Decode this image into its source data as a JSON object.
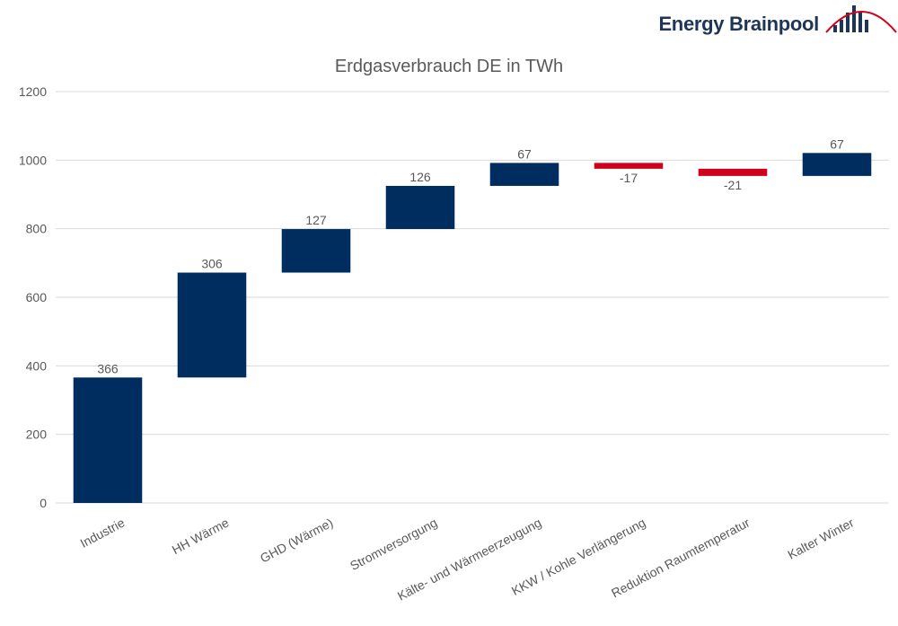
{
  "brand": {
    "name": "Energy Brainpool",
    "text_color": "#1f3558",
    "accent_color": "#d0021b"
  },
  "chart_data": {
    "type": "waterfall",
    "title": "Erdgasverbrauch DE in TWh",
    "xlabel": "",
    "ylabel": "",
    "ylim": [
      0,
      1200
    ],
    "yticks": [
      0,
      200,
      400,
      600,
      800,
      1000,
      1200
    ],
    "grid": true,
    "categories": [
      "Industrie",
      "HH Wärme",
      "GHD (Wärme)",
      "Stromversorgung",
      "Kälte- und Wärmeerzeugung",
      "KKW / Kohle Verlängerung",
      "Reduktion Raumtemperatur",
      "Kalter Winter"
    ],
    "values": [
      366,
      306,
      127,
      126,
      67,
      -17,
      -21,
      67
    ],
    "bars": [
      {
        "start": 0,
        "end": 366
      },
      {
        "start": 366,
        "end": 672
      },
      {
        "start": 672,
        "end": 799
      },
      {
        "start": 799,
        "end": 925
      },
      {
        "start": 925,
        "end": 992
      },
      {
        "start": 975,
        "end": 992
      },
      {
        "start": 954,
        "end": 975
      },
      {
        "start": 954,
        "end": 1021
      }
    ],
    "data_labels": [
      "366",
      "306",
      "127",
      "126",
      "67",
      "-17",
      "-21",
      "67"
    ],
    "colors": {
      "positive": "#002d5f",
      "negative": "#d0021b",
      "grid": "#d9d9d9",
      "text": "#595959"
    }
  }
}
